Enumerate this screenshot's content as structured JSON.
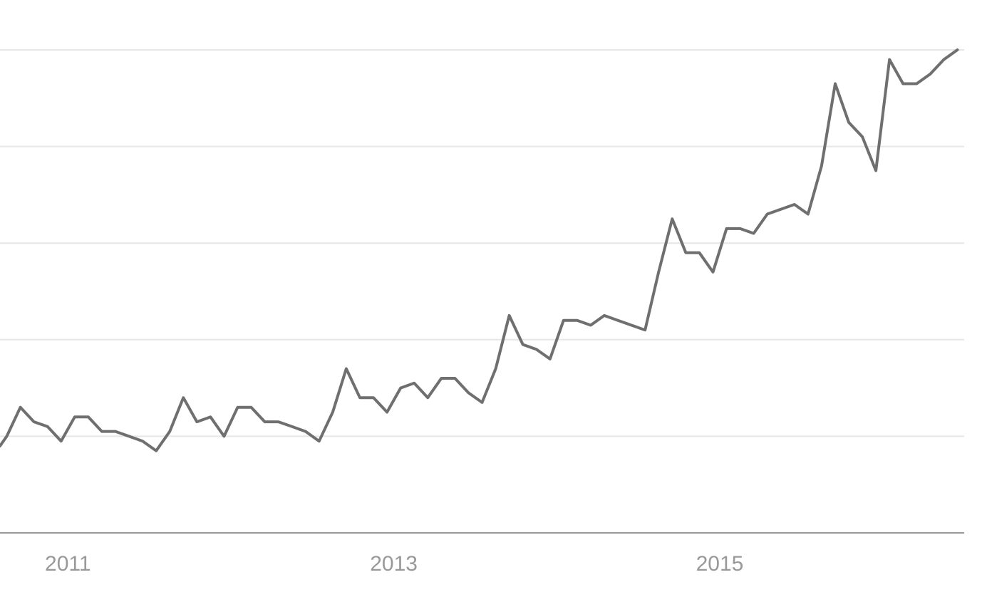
{
  "chart_data": {
    "type": "line",
    "title": "",
    "xlabel": "",
    "ylabel": "",
    "x_tick_labels": [
      "2011",
      "2013",
      "2015"
    ],
    "x_tick_values": [
      2011.0,
      2013.0,
      2015.0
    ],
    "xlim": [
      2010.5833,
      2016.5
    ],
    "ylim": [
      0,
      100
    ],
    "y_gridlines": [
      0,
      20,
      40,
      60,
      80,
      100
    ],
    "grid": true,
    "legend": "none",
    "series": [
      {
        "color": "#6f6f6f",
        "points": [
          [
            2010.5833,
            18
          ],
          [
            2010.625,
            20
          ],
          [
            2010.7083,
            26
          ],
          [
            2010.7917,
            23
          ],
          [
            2010.875,
            22
          ],
          [
            2010.9583,
            19
          ],
          [
            2011.0417,
            24
          ],
          [
            2011.125,
            24
          ],
          [
            2011.2083,
            21
          ],
          [
            2011.2917,
            21
          ],
          [
            2011.375,
            20
          ],
          [
            2011.4583,
            19
          ],
          [
            2011.5417,
            17
          ],
          [
            2011.625,
            21
          ],
          [
            2011.7083,
            28
          ],
          [
            2011.7917,
            23
          ],
          [
            2011.875,
            24
          ],
          [
            2011.9583,
            20
          ],
          [
            2012.0417,
            26
          ],
          [
            2012.125,
            26
          ],
          [
            2012.2083,
            23
          ],
          [
            2012.2917,
            23
          ],
          [
            2012.375,
            22
          ],
          [
            2012.4583,
            21
          ],
          [
            2012.5417,
            19
          ],
          [
            2012.625,
            25
          ],
          [
            2012.7083,
            34
          ],
          [
            2012.7917,
            28
          ],
          [
            2012.875,
            28
          ],
          [
            2012.9583,
            25
          ],
          [
            2013.0417,
            30
          ],
          [
            2013.125,
            31
          ],
          [
            2013.2083,
            28
          ],
          [
            2013.2917,
            32
          ],
          [
            2013.375,
            32
          ],
          [
            2013.4583,
            29
          ],
          [
            2013.5417,
            27
          ],
          [
            2013.625,
            34
          ],
          [
            2013.7083,
            45
          ],
          [
            2013.7917,
            39
          ],
          [
            2013.875,
            38
          ],
          [
            2013.9583,
            36
          ],
          [
            2014.0417,
            44
          ],
          [
            2014.125,
            44
          ],
          [
            2014.2083,
            43
          ],
          [
            2014.2917,
            45
          ],
          [
            2014.375,
            44
          ],
          [
            2014.4583,
            43
          ],
          [
            2014.5417,
            42
          ],
          [
            2014.625,
            54
          ],
          [
            2014.7083,
            65
          ],
          [
            2014.7917,
            58
          ],
          [
            2014.875,
            58
          ],
          [
            2014.9583,
            54
          ],
          [
            2015.0417,
            63
          ],
          [
            2015.125,
            63
          ],
          [
            2015.2083,
            62
          ],
          [
            2015.2917,
            66
          ],
          [
            2015.375,
            67
          ],
          [
            2015.4583,
            68
          ],
          [
            2015.5417,
            66
          ],
          [
            2015.625,
            76
          ],
          [
            2015.7083,
            93
          ],
          [
            2015.7917,
            85
          ],
          [
            2015.875,
            82
          ],
          [
            2015.9583,
            75
          ],
          [
            2016.0417,
            98
          ],
          [
            2016.125,
            93
          ],
          [
            2016.2083,
            93
          ],
          [
            2016.2917,
            95
          ],
          [
            2016.375,
            98
          ],
          [
            2016.4583,
            100
          ]
        ]
      }
    ]
  }
}
